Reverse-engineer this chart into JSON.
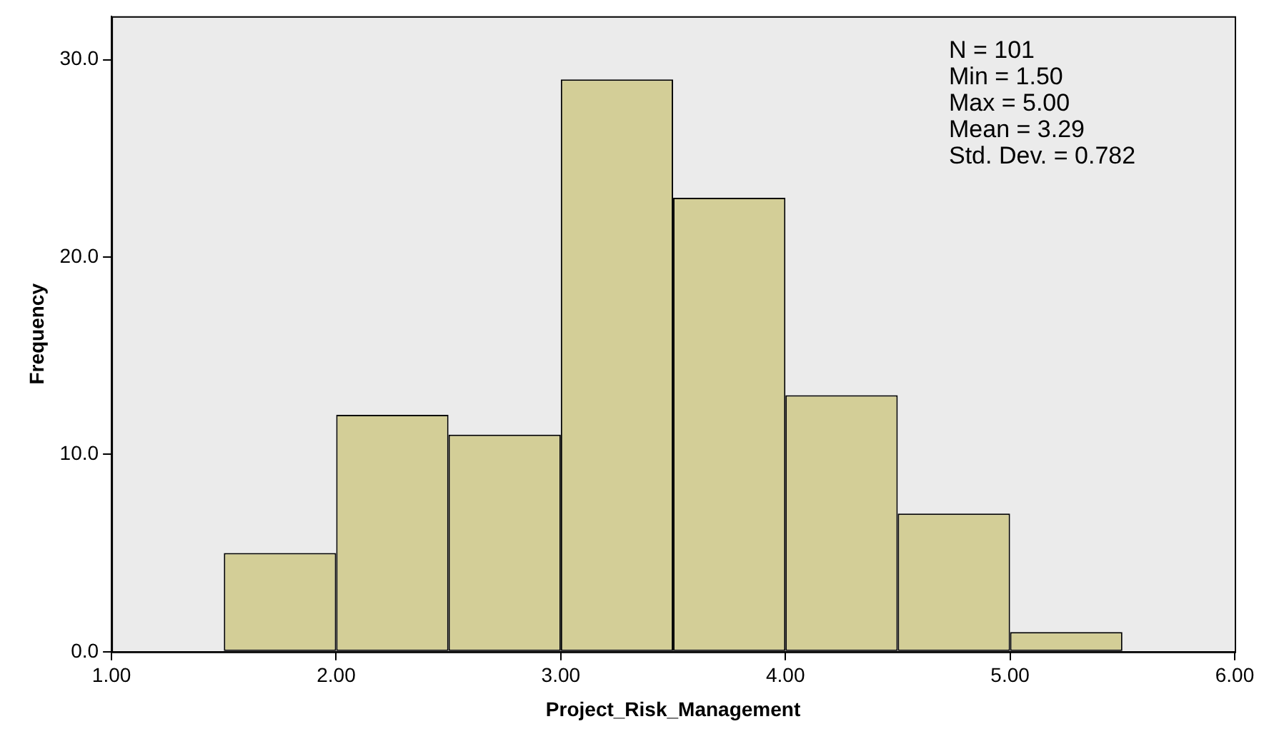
{
  "chart_data": {
    "type": "histogram",
    "xlabel": "Project_Risk_Management",
    "ylabel": "Frequency",
    "bins": [
      1.5,
      2.0,
      2.5,
      3.0,
      3.5,
      4.0,
      4.5,
      5.0,
      5.5
    ],
    "values": [
      5,
      12,
      11,
      29,
      23,
      13,
      7,
      1
    ],
    "color": "#d3ce97",
    "xlim": [
      1,
      6
    ],
    "xticks": [
      {
        "value": 1,
        "label": "1.00"
      },
      {
        "value": 2,
        "label": "2.00"
      },
      {
        "value": 3,
        "label": "3.00"
      },
      {
        "value": 4,
        "label": "4.00"
      },
      {
        "value": 5,
        "label": "5.00"
      },
      {
        "value": 6,
        "label": "6.00"
      }
    ],
    "ylim": [
      0,
      32.2
    ],
    "yticks": [
      {
        "value": 0,
        "label": "0.0"
      },
      {
        "value": 10,
        "label": "10.0"
      },
      {
        "value": 20,
        "label": "20.0"
      },
      {
        "value": 30,
        "label": "30.0"
      }
    ],
    "grid": false,
    "legend": false,
    "annotations": [
      "N = 101",
      "Min = 1.50",
      "Max = 5.00",
      "Mean = 3.29",
      "Std. Dev. = 0.782"
    ]
  }
}
